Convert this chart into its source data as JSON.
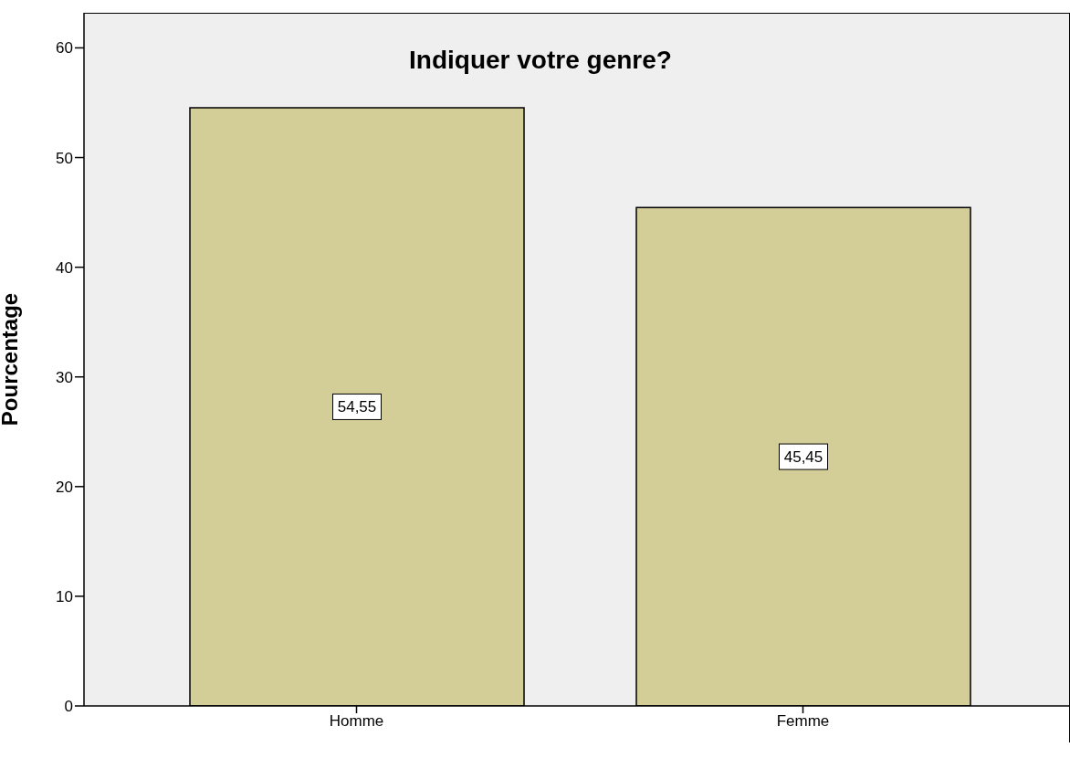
{
  "chart_data": {
    "type": "bar",
    "title": "Indiquer votre genre?",
    "ylabel": "Pourcentage",
    "categories": [
      "Homme",
      "Femme"
    ],
    "values": [
      54.55,
      45.45
    ],
    "value_labels": [
      "54,55",
      "45,45"
    ],
    "color": "#d3ce98",
    "ylim": [
      0,
      63.2
    ],
    "yticks": [
      0,
      10,
      20,
      30,
      40,
      50,
      60
    ],
    "grid": false
  }
}
